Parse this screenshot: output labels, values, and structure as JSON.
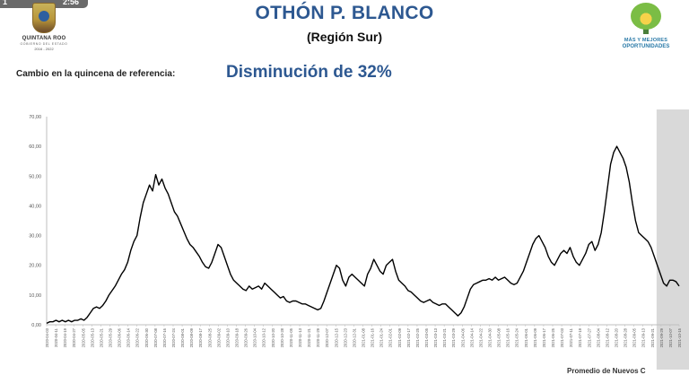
{
  "video_chip": {
    "left": "1",
    "right": "2:56"
  },
  "header": {
    "title": "OTHÓN P. BLANCO",
    "subtitle": "(Región Sur)",
    "left_logo": {
      "name": "QUINTANA ROO",
      "tagline": "GOBIERNO DEL ESTADO",
      "years": "2016 - 2022"
    },
    "right_logo": {
      "line1": "MÁS Y MEJORES",
      "line2": "OPORTUNIDADES"
    }
  },
  "summary": {
    "label": "Cambio en la quincena de referencia:",
    "value": "Disminución de 32%"
  },
  "caption": "Promedio de Nuevos C",
  "colors": {
    "title": "#2d5891",
    "line": "#000000",
    "shade": "#d9d9d9",
    "axis": "#bfbfbf"
  },
  "chart_data": {
    "type": "line",
    "title": "",
    "xlabel": "",
    "ylabel": "",
    "ylim": [
      0,
      70
    ],
    "yticks": [
      "0,00",
      "10,00",
      "20,00",
      "30,00",
      "40,00",
      "50,00",
      "60,00",
      "70,00"
    ],
    "grid": false,
    "highlight_region": {
      "from": "2021-09-22",
      "to": "2021-10-18",
      "description": "shaded"
    },
    "xtick_labels": [
      "2020-04-03",
      "2020-04-11",
      "2020-04-19",
      "2020-04-27",
      "2020-05-05",
      "2020-05-13",
      "2020-05-21",
      "2020-05-29",
      "2020-06-06",
      "2020-06-14",
      "2020-06-22",
      "2020-06-30",
      "2020-07-08",
      "2020-07-16",
      "2020-07-24",
      "2020-08-01",
      "2020-08-09",
      "2020-08-17",
      "2020-08-25",
      "2020-09-02",
      "2020-09-10",
      "2020-09-18",
      "2020-09-26",
      "2020-10-04",
      "2020-10-12",
      "2020-10-20",
      "2020-10-28",
      "2020-11-05",
      "2020-11-13",
      "2020-11-21",
      "2020-11-29",
      "2020-12-07",
      "2020-12-15",
      "2020-12-23",
      "2020-12-31",
      "2021-01-08",
      "2021-01-16",
      "2021-01-24",
      "2021-02-01",
      "2021-02-09",
      "2021-02-17",
      "2021-02-25",
      "2021-03-05",
      "2021-03-13",
      "2021-03-21",
      "2021-03-29",
      "2021-04-06",
      "2021-04-14",
      "2021-04-22",
      "2021-04-30",
      "2021-05-08",
      "2021-05-16",
      "2021-05-24",
      "2021-06-01",
      "2021-06-09",
      "2021-06-17",
      "2021-06-25",
      "2021-07-03",
      "2021-07-11",
      "2021-07-19",
      "2021-07-27",
      "2021-08-04",
      "2021-08-12",
      "2021-08-20",
      "2021-08-28",
      "2021-09-05",
      "2021-09-13",
      "2021-09-21",
      "2021-09-29",
      "2021-10-07",
      "2021-10-15"
    ],
    "series": [
      {
        "values": [
          0.5,
          1,
          1,
          1.5,
          1,
          1.5,
          1,
          1.5,
          1,
          1.5,
          1.5,
          2,
          1.5,
          2.5,
          4,
          5.5,
          6,
          5.5,
          6.5,
          8,
          10,
          11.5,
          13,
          15,
          17,
          18.5,
          21,
          25,
          28,
          30,
          36,
          41,
          44,
          47,
          45,
          50.5,
          47,
          49,
          46,
          44,
          41,
          38,
          36.5,
          34,
          31.5,
          29,
          27,
          26,
          24.5,
          23,
          21,
          19.5,
          19,
          21,
          24,
          27,
          26,
          23,
          20,
          17,
          15,
          14,
          13,
          12,
          11.5,
          13,
          12,
          12.5,
          13,
          12,
          14,
          13,
          12,
          11,
          10,
          9,
          9.5,
          8,
          7.5,
          8,
          8,
          7.5,
          7,
          7,
          6.5,
          6,
          5.5,
          5,
          5.5,
          8,
          11,
          14,
          17,
          20,
          19,
          15,
          13,
          16,
          17,
          16,
          15,
          14,
          13,
          17,
          19,
          22,
          20,
          18,
          17,
          20,
          21,
          22,
          18,
          15,
          14,
          13,
          11.5,
          11,
          10,
          9,
          8,
          7.5,
          8,
          8.5,
          7.5,
          7,
          6.5,
          7,
          7,
          6,
          5,
          4,
          3,
          4,
          6,
          9,
          12,
          13.5,
          14,
          14.5,
          15,
          15,
          15.5,
          15,
          16,
          15,
          15.5,
          16,
          15,
          14,
          13.5,
          14,
          16,
          18,
          21,
          24,
          27,
          29,
          30,
          28,
          26,
          23,
          21,
          20,
          22,
          24,
          25,
          24,
          26,
          23,
          21,
          20,
          22,
          24,
          27,
          28,
          25,
          27,
          31,
          38,
          46,
          54,
          58,
          60,
          58,
          56,
          53,
          48,
          41,
          35,
          31,
          30,
          29,
          28,
          26,
          23,
          20,
          17,
          14,
          13,
          15,
          15,
          14.5,
          13
        ]
      }
    ]
  }
}
